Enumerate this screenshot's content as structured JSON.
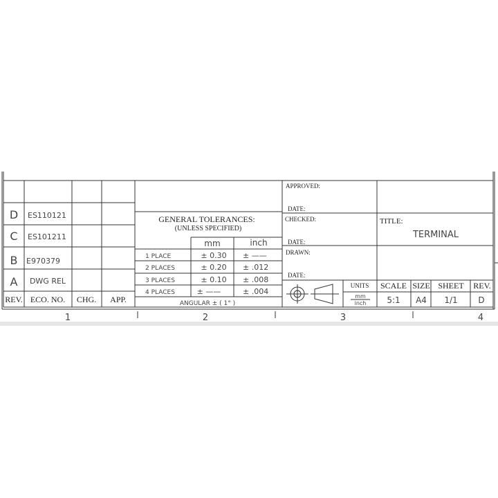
{
  "revision_block": {
    "headers": {
      "rev": "REV.",
      "eco": "ECO. NO.",
      "chg": "CHG.",
      "app": "APP."
    },
    "rows": [
      {
        "rev": "D",
        "eco": "ES110121"
      },
      {
        "rev": "C",
        "eco": "ES101211"
      },
      {
        "rev": "B",
        "eco": "E970379"
      },
      {
        "rev": "A",
        "eco": "DWG REL"
      }
    ]
  },
  "tolerances": {
    "title": "GENERAL TOLERANCES:",
    "subtitle": "(UNLESS SPECIFIED)",
    "col_mm": "mm",
    "col_inch": "inch",
    "rows": [
      {
        "label": "1 PLACE",
        "mm": "± 0.30",
        "inch": "± ——"
      },
      {
        "label": "2 PLACES",
        "mm": "± 0.20",
        "inch": "± .012"
      },
      {
        "label": "3 PLACES",
        "mm": "± 0.10",
        "inch": "± .008"
      },
      {
        "label": "4 PLACES",
        "mm": "± ——",
        "inch": "± .004"
      }
    ],
    "angular": "ANGULAR  ± ( 1° )"
  },
  "signoff": {
    "approved": "APPROVED:",
    "checked": "CHECKED:",
    "drawn": "DRAWN:",
    "date": "DATE:"
  },
  "title_block": {
    "title_label": "TITLE:",
    "title": "TERMINAL",
    "units_label": "UNITS",
    "units_top": "mm",
    "units_bottom": "inch",
    "scale_label": "SCALE",
    "scale": "5:1",
    "size_label": "SIZE",
    "size": "A4",
    "sheet_label": "SHEET",
    "sheet": "1/1",
    "rev_label": "REV.",
    "rev": "D",
    "projection_icon": "third-angle-projection-symbol"
  },
  "zones": [
    "1",
    "2",
    "3",
    "4"
  ]
}
